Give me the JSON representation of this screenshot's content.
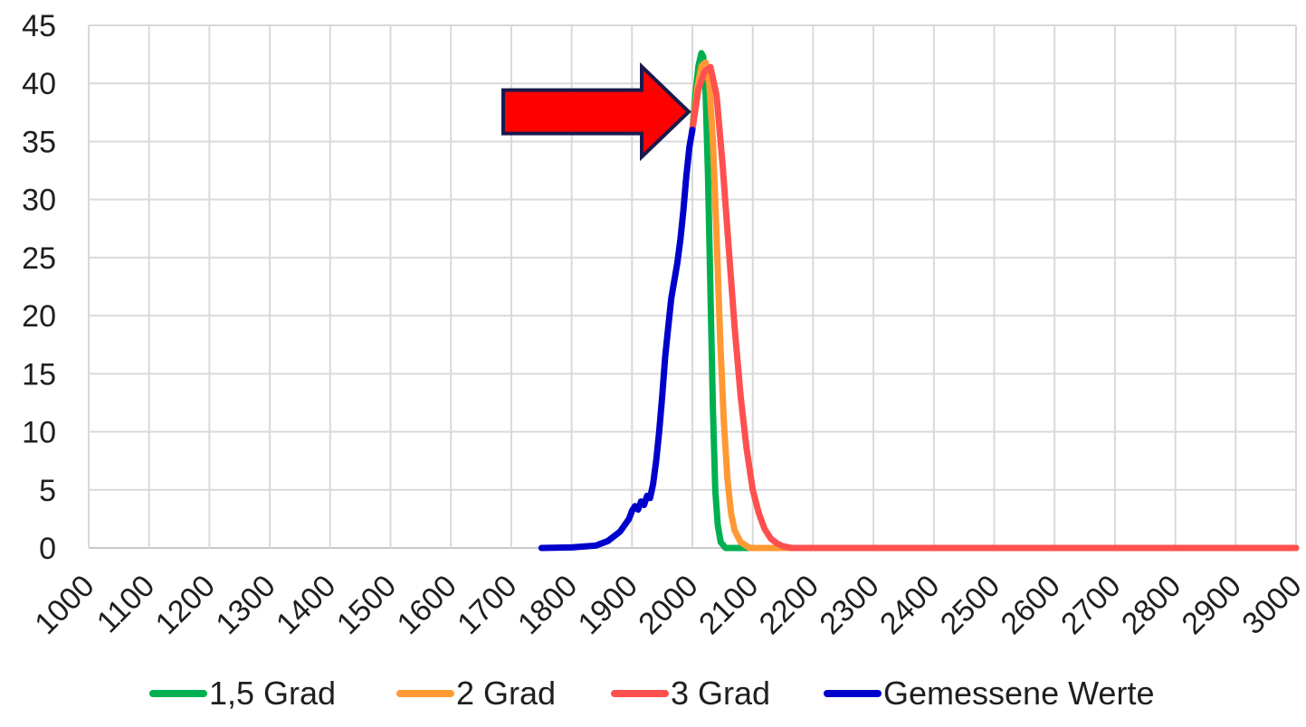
{
  "chart_data": {
    "type": "line",
    "title": "",
    "xlabel": "",
    "ylabel": "",
    "xlim": [
      1000,
      3000
    ],
    "ylim": [
      0,
      45
    ],
    "x_ticks": [
      "1000",
      "1100",
      "1200",
      "1300",
      "1400",
      "1500",
      "1600",
      "1700",
      "1800",
      "1900",
      "2000",
      "2100",
      "2200",
      "2300",
      "2400",
      "2500",
      "2600",
      "2700",
      "2800",
      "2900",
      "3000"
    ],
    "y_ticks": [
      "0",
      "5",
      "10",
      "15",
      "20",
      "25",
      "30",
      "35",
      "40",
      "45"
    ],
    "grid": true,
    "legend_position": "bottom",
    "series": [
      {
        "name": "1,5 Grad",
        "color": "#00b050",
        "points": [
          [
            2000,
            36
          ],
          [
            2005,
            39
          ],
          [
            2010,
            41.5
          ],
          [
            2015,
            42.6
          ],
          [
            2018,
            42.3
          ],
          [
            2022,
            39
          ],
          [
            2026,
            32
          ],
          [
            2030,
            22
          ],
          [
            2034,
            12
          ],
          [
            2038,
            5
          ],
          [
            2042,
            2
          ],
          [
            2047,
            0.5
          ],
          [
            2055,
            0
          ],
          [
            3000,
            0
          ]
        ]
      },
      {
        "name": "2 Grad",
        "color": "#ff9933",
        "points": [
          [
            2000,
            36
          ],
          [
            2008,
            39.5
          ],
          [
            2015,
            41.5
          ],
          [
            2022,
            41.8
          ],
          [
            2028,
            40
          ],
          [
            2034,
            35
          ],
          [
            2040,
            27
          ],
          [
            2046,
            18
          ],
          [
            2052,
            11
          ],
          [
            2058,
            6
          ],
          [
            2064,
            3
          ],
          [
            2070,
            1.5
          ],
          [
            2080,
            0.5
          ],
          [
            2095,
            0
          ],
          [
            3000,
            0
          ]
        ]
      },
      {
        "name": "3 Grad",
        "color": "#ff5050",
        "points": [
          [
            2000,
            36
          ],
          [
            2010,
            39.5
          ],
          [
            2020,
            41
          ],
          [
            2030,
            41.4
          ],
          [
            2040,
            39
          ],
          [
            2050,
            33
          ],
          [
            2060,
            26
          ],
          [
            2070,
            19
          ],
          [
            2080,
            13
          ],
          [
            2090,
            8.5
          ],
          [
            2100,
            5
          ],
          [
            2110,
            3
          ],
          [
            2120,
            1.6
          ],
          [
            2130,
            0.8
          ],
          [
            2140,
            0.4
          ],
          [
            2150,
            0.15
          ],
          [
            2165,
            0
          ],
          [
            3000,
            0
          ]
        ]
      },
      {
        "name": "Gemessene Werte",
        "color": "#0000cc",
        "points": [
          [
            1750,
            0
          ],
          [
            1800,
            0.05
          ],
          [
            1840,
            0.2
          ],
          [
            1860,
            0.6
          ],
          [
            1880,
            1.4
          ],
          [
            1895,
            2.5
          ],
          [
            1900,
            3.2
          ],
          [
            1905,
            3.6
          ],
          [
            1910,
            3.3
          ],
          [
            1915,
            4.0
          ],
          [
            1920,
            3.7
          ],
          [
            1925,
            4.5
          ],
          [
            1930,
            4.3
          ],
          [
            1935,
            5.5
          ],
          [
            1940,
            7.5
          ],
          [
            1945,
            10
          ],
          [
            1950,
            13
          ],
          [
            1955,
            16.5
          ],
          [
            1960,
            19
          ],
          [
            1965,
            21.5
          ],
          [
            1970,
            23
          ],
          [
            1975,
            24.5
          ],
          [
            1980,
            26.5
          ],
          [
            1985,
            29
          ],
          [
            1990,
            32
          ],
          [
            1995,
            34.5
          ],
          [
            2000,
            36
          ]
        ]
      }
    ],
    "annotations": [
      {
        "type": "arrow",
        "color": "#ff0000",
        "outline": "#1a1a4d",
        "direction": "right",
        "target": {
          "x": 2000,
          "y": 36
        }
      }
    ]
  }
}
